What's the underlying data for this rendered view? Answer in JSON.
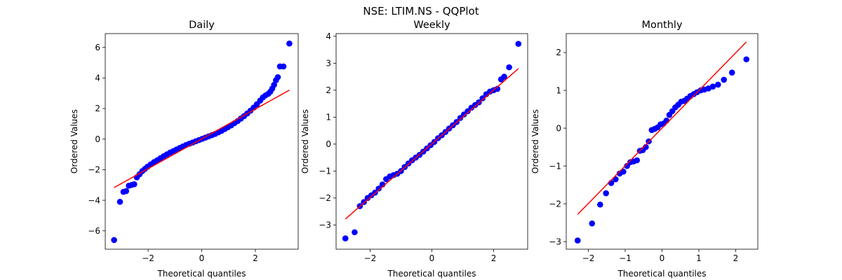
{
  "figure": {
    "suptitle": "NSE: LTIM.NS - QQPlot"
  },
  "style": {
    "point_color": "#0000ff",
    "line_color": "#ff0000",
    "axis_color": "#000000",
    "background": "#ffffff"
  },
  "chart_data": [
    {
      "type": "scatter",
      "title": "Daily",
      "xlabel": "Theoretical quantiles",
      "ylabel": "Ordered Values",
      "xlim": [
        -3.6,
        3.6
      ],
      "ylim": [
        -7.2,
        6.9
      ],
      "xticks": [
        -2,
        0,
        2
      ],
      "yticks": [
        -6,
        -4,
        -2,
        0,
        2,
        4,
        6
      ],
      "grid": false,
      "fit_line": {
        "x": [
          -3.27,
          3.27
        ],
        "y": [
          -3.17,
          3.2
        ]
      },
      "series": [
        {
          "x": [
            -3.27,
            -3.05,
            -2.92,
            -2.82,
            -2.72,
            -2.62,
            -2.52,
            -2.42,
            -2.32,
            -2.22,
            -2.12,
            -2.02,
            -1.9,
            -1.78,
            -1.66,
            -1.54,
            -1.42,
            -1.3,
            -1.18,
            -1.06,
            -0.94,
            -0.82,
            -0.7,
            -0.58,
            -0.46,
            -0.34,
            -0.22,
            -0.1,
            0.02,
            0.14,
            0.26,
            0.38,
            0.5,
            0.62,
            0.74,
            0.86,
            0.98,
            1.1,
            1.22,
            1.34,
            1.46,
            1.58,
            1.7,
            1.82,
            1.94,
            2.06,
            2.18,
            2.28,
            2.38,
            2.48,
            2.56,
            2.63,
            2.7,
            2.77,
            2.84,
            2.92,
            3.05,
            3.27
          ],
          "y": [
            -6.6,
            -4.1,
            -3.45,
            -3.4,
            -3.05,
            -3.0,
            -2.95,
            -2.5,
            -2.3,
            -2.1,
            -1.95,
            -1.8,
            -1.65,
            -1.5,
            -1.38,
            -1.25,
            -1.12,
            -1.0,
            -0.88,
            -0.78,
            -0.68,
            -0.58,
            -0.48,
            -0.38,
            -0.3,
            -0.22,
            -0.14,
            -0.06,
            0.02,
            0.1,
            0.18,
            0.26,
            0.34,
            0.44,
            0.54,
            0.66,
            0.78,
            0.9,
            1.04,
            1.18,
            1.34,
            1.5,
            1.68,
            1.86,
            2.06,
            2.28,
            2.52,
            2.72,
            2.86,
            2.96,
            3.1,
            3.3,
            3.55,
            3.85,
            4.05,
            4.75,
            4.75,
            6.25
          ]
        }
      ]
    },
    {
      "type": "scatter",
      "title": "Weekly",
      "xlabel": "Theoretical quantiles",
      "ylabel": "Ordered Values",
      "xlim": [
        -3.1,
        3.1
      ],
      "ylim": [
        -3.9,
        4.1
      ],
      "xticks": [
        -2,
        0,
        2
      ],
      "yticks": [
        -3,
        -2,
        -1,
        0,
        1,
        2,
        3,
        4
      ],
      "grid": false,
      "fit_line": {
        "x": [
          -2.8,
          2.8
        ],
        "y": [
          -2.78,
          2.8
        ]
      },
      "series": [
        {
          "x": [
            -2.8,
            -2.5,
            -2.33,
            -2.2,
            -2.08,
            -1.96,
            -1.84,
            -1.72,
            -1.6,
            -1.48,
            -1.36,
            -1.24,
            -1.12,
            -1.0,
            -0.88,
            -0.76,
            -0.64,
            -0.52,
            -0.4,
            -0.28,
            -0.16,
            -0.04,
            0.08,
            0.2,
            0.32,
            0.44,
            0.56,
            0.68,
            0.8,
            0.92,
            1.04,
            1.16,
            1.28,
            1.4,
            1.52,
            1.64,
            1.76,
            1.88,
            2.0,
            2.12,
            2.24,
            2.34,
            2.5,
            2.8
          ],
          "y": [
            -3.5,
            -3.27,
            -2.3,
            -2.15,
            -2.0,
            -1.9,
            -1.8,
            -1.65,
            -1.5,
            -1.3,
            -1.2,
            -1.15,
            -1.1,
            -1.0,
            -0.85,
            -0.72,
            -0.6,
            -0.5,
            -0.4,
            -0.28,
            -0.16,
            -0.04,
            0.08,
            0.22,
            0.33,
            0.45,
            0.58,
            0.7,
            0.82,
            0.97,
            1.1,
            1.22,
            1.35,
            1.45,
            1.55,
            1.7,
            1.85,
            1.95,
            2.0,
            2.05,
            2.4,
            2.5,
            2.85,
            3.72
          ]
        }
      ]
    },
    {
      "type": "scatter",
      "title": "Monthly",
      "xlabel": "Theoretical quantiles",
      "ylabel": "Ordered Values",
      "xlim": [
        -2.6,
        2.6
      ],
      "ylim": [
        -3.2,
        2.5
      ],
      "xticks": [
        -2,
        -1,
        0,
        1,
        2
      ],
      "yticks": [
        -3,
        -2,
        -1,
        0,
        1,
        2
      ],
      "grid": false,
      "fit_line": {
        "x": [
          -2.29,
          2.29
        ],
        "y": [
          -2.28,
          2.28
        ]
      },
      "series": [
        {
          "x": [
            -2.29,
            -1.9,
            -1.68,
            -1.52,
            -1.38,
            -1.26,
            -1.15,
            -1.05,
            -0.95,
            -0.86,
            -0.77,
            -0.68,
            -0.6,
            -0.52,
            -0.44,
            -0.36,
            -0.28,
            -0.2,
            -0.12,
            -0.04,
            0.04,
            0.12,
            0.2,
            0.28,
            0.36,
            0.44,
            0.52,
            0.6,
            0.68,
            0.77,
            0.86,
            0.95,
            1.05,
            1.15,
            1.26,
            1.38,
            1.52,
            1.68,
            1.9,
            2.29
          ],
          "y": [
            -2.97,
            -2.52,
            -2.02,
            -1.72,
            -1.45,
            -1.35,
            -1.2,
            -1.15,
            -1.0,
            -0.9,
            -0.88,
            -0.85,
            -0.6,
            -0.58,
            -0.5,
            -0.35,
            -0.05,
            -0.02,
            0.02,
            0.1,
            0.12,
            0.2,
            0.35,
            0.45,
            0.55,
            0.62,
            0.7,
            0.72,
            0.78,
            0.85,
            0.9,
            0.95,
            1.0,
            1.02,
            1.05,
            1.1,
            1.15,
            1.28,
            1.47,
            1.82
          ]
        }
      ]
    }
  ]
}
